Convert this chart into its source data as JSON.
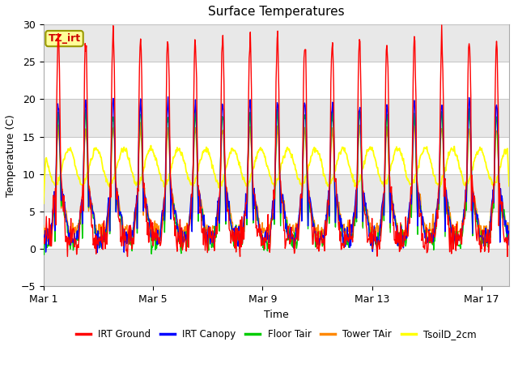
{
  "title": "Surface Temperatures",
  "xlabel": "Time",
  "ylabel": "Temperature (C)",
  "ylim": [
    -5,
    30
  ],
  "xlim": [
    0,
    17
  ],
  "yticks": [
    -5,
    0,
    5,
    10,
    15,
    20,
    25,
    30
  ],
  "xtick_labels": [
    "Mar 1",
    "Mar 5",
    "Mar 9",
    "Mar 13",
    "Mar 17"
  ],
  "xtick_positions": [
    0,
    4,
    8,
    12,
    16
  ],
  "grid_color": "#c8c8c8",
  "bg_color": "#e8e8e8",
  "fig_color": "#ffffff",
  "legend_entries": [
    "IRT Ground",
    "IRT Canopy",
    "Floor Tair",
    "Tower TAir",
    "TsoilD_2cm"
  ],
  "legend_colors": [
    "#ff0000",
    "#0000ff",
    "#00cc00",
    "#ff8800",
    "#ffff00"
  ],
  "annotation_text": "TZ_irt",
  "annotation_bg": "#ffff99",
  "annotation_border": "#999900",
  "line_colors": {
    "IRT_Ground": "#ff0000",
    "IRT_Canopy": "#0000ff",
    "Floor_Tair": "#00cc00",
    "Tower_TAir": "#ff8800",
    "TsoilD_2cm": "#ffff00"
  }
}
